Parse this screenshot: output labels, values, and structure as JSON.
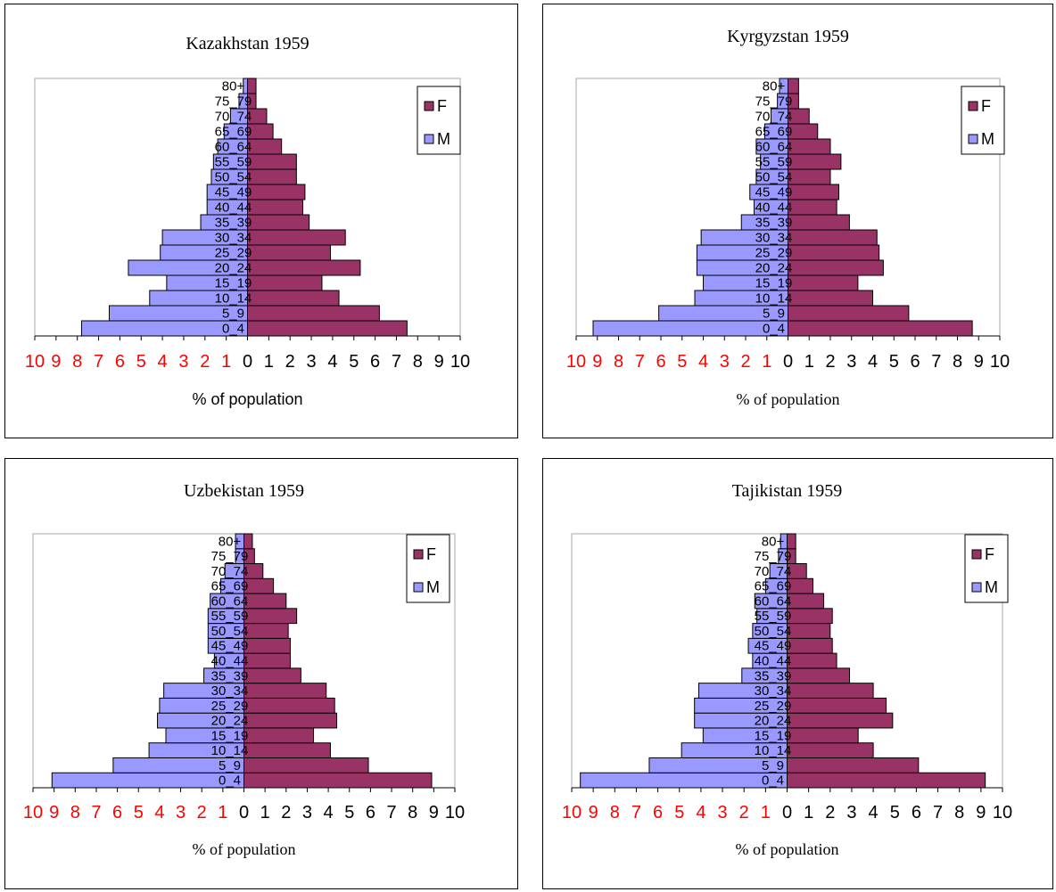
{
  "ages": [
    "0_4",
    "5_9",
    "10_14",
    "15_19",
    "20_24",
    "25_29",
    "30_34",
    "35_39",
    "40_44",
    "45_49",
    "50_54",
    "55_59",
    "60_64",
    "65_69",
    "70_74",
    "75_79",
    "80+"
  ],
  "legend": {
    "female": "F",
    "male": "M"
  },
  "colors": {
    "female": "#993366",
    "male": "#9999ff",
    "left_ticks": "#ff0000",
    "right_ticks": "#000000"
  },
  "left_ticks": [
    "10",
    "9",
    "8",
    "7",
    "6",
    "5",
    "4",
    "3",
    "2",
    "1"
  ],
  "right_ticks": [
    "0",
    "1",
    "2",
    "3",
    "4",
    "5",
    "6",
    "7",
    "8",
    "9",
    "10"
  ],
  "chart_data": [
    {
      "type": "bar",
      "title": "Kazakhstan 1959",
      "xlabel": "% of population",
      "xlim": [
        -10,
        10
      ],
      "series": [
        {
          "name": "F",
          "values": [
            7.5,
            6.2,
            4.3,
            3.5,
            5.3,
            3.9,
            4.6,
            2.9,
            2.6,
            2.7,
            2.3,
            2.3,
            1.6,
            1.2,
            0.9,
            0.4,
            0.4
          ]
        },
        {
          "name": "M",
          "values": [
            -7.8,
            -6.5,
            -4.6,
            -3.8,
            -5.6,
            -4.1,
            -4.0,
            -2.2,
            -1.9,
            -1.9,
            -1.7,
            -1.6,
            -1.4,
            -1.1,
            -0.8,
            -0.4,
            -0.2
          ]
        }
      ]
    },
    {
      "type": "bar",
      "title": "Kyrgyzstan 1959",
      "xlabel": "% of population",
      "xlim": [
        -10,
        10
      ],
      "series": [
        {
          "name": "F",
          "values": [
            8.7,
            5.7,
            4.0,
            3.3,
            4.5,
            4.3,
            4.2,
            2.9,
            2.3,
            2.4,
            2.0,
            2.5,
            2.0,
            1.4,
            1.0,
            0.5,
            0.5
          ]
        },
        {
          "name": "M",
          "values": [
            -9.2,
            -6.1,
            -4.4,
            -4.0,
            -4.3,
            -4.3,
            -4.1,
            -2.2,
            -1.6,
            -1.8,
            -1.5,
            -1.3,
            -1.5,
            -1.1,
            -0.8,
            -0.5,
            -0.4
          ]
        }
      ]
    },
    {
      "type": "bar",
      "title": "Uzbekistan 1959",
      "xlabel": "% of population",
      "xlim": [
        -10,
        10
      ],
      "series": [
        {
          "name": "F",
          "values": [
            8.9,
            5.9,
            4.1,
            3.3,
            4.4,
            4.3,
            3.9,
            2.7,
            2.2,
            2.2,
            2.1,
            2.5,
            2.0,
            1.4,
            0.9,
            0.5,
            0.4
          ]
        },
        {
          "name": "M",
          "values": [
            -9.1,
            -6.2,
            -4.5,
            -3.7,
            -4.1,
            -4.0,
            -3.8,
            -1.9,
            -1.4,
            -1.7,
            -1.7,
            -1.7,
            -1.6,
            -1.1,
            -0.9,
            -0.4,
            -0.4
          ]
        }
      ]
    },
    {
      "type": "bar",
      "title": "Tajikistan 1959",
      "xlabel": "% of population",
      "xlim": [
        -10,
        10
      ],
      "series": [
        {
          "name": "F",
          "values": [
            9.2,
            6.1,
            4.0,
            3.3,
            4.9,
            4.6,
            4.0,
            2.9,
            2.3,
            2.1,
            2.0,
            2.1,
            1.7,
            1.2,
            0.9,
            0.4,
            0.4
          ]
        },
        {
          "name": "M",
          "values": [
            -9.6,
            -6.4,
            -4.9,
            -3.9,
            -4.3,
            -4.3,
            -4.1,
            -2.1,
            -1.6,
            -1.8,
            -1.6,
            -1.4,
            -1.5,
            -1.0,
            -0.8,
            -0.4,
            -0.3
          ]
        }
      ]
    }
  ]
}
